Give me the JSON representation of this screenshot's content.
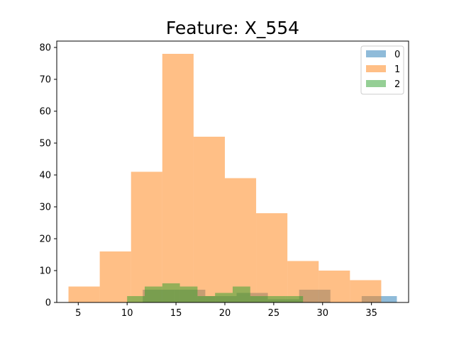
{
  "chart_data": {
    "type": "histogram",
    "title": "Feature: X_554",
    "xlabel": "",
    "ylabel": "",
    "xlim": [
      2.8,
      38.8
    ],
    "ylim": [
      0,
      82
    ],
    "x_ticks": [
      5,
      10,
      15,
      20,
      25,
      30,
      35
    ],
    "y_ticks": [
      0,
      10,
      20,
      30,
      40,
      50,
      60,
      70,
      80
    ],
    "grid": false,
    "legend_position": "top-right",
    "series": [
      {
        "name": "0",
        "color": "#1f77b4",
        "opacity": 0.5,
        "bins": [
          {
            "x0": 11.6,
            "x1": 14.8,
            "count": 4
          },
          {
            "x0": 14.8,
            "x1": 18.0,
            "count": 4
          },
          {
            "x0": 18.0,
            "x1": 21.2,
            "count": 2
          },
          {
            "x0": 21.2,
            "x1": 24.4,
            "count": 3
          },
          {
            "x0": 24.4,
            "x1": 27.6,
            "count": 1
          },
          {
            "x0": 27.6,
            "x1": 30.8,
            "count": 4
          },
          {
            "x0": 30.8,
            "x1": 34.0,
            "count": 0
          },
          {
            "x0": 34.0,
            "x1": 37.6,
            "count": 2
          }
        ]
      },
      {
        "name": "1",
        "color": "#ff7f0e",
        "opacity": 0.5,
        "bins": [
          {
            "x0": 4.0,
            "x1": 7.2,
            "count": 5
          },
          {
            "x0": 7.2,
            "x1": 10.4,
            "count": 16
          },
          {
            "x0": 10.4,
            "x1": 13.6,
            "count": 41
          },
          {
            "x0": 13.6,
            "x1": 16.8,
            "count": 78
          },
          {
            "x0": 16.8,
            "x1": 20.0,
            "count": 52
          },
          {
            "x0": 20.0,
            "x1": 23.2,
            "count": 39
          },
          {
            "x0": 23.2,
            "x1": 26.4,
            "count": 28
          },
          {
            "x0": 26.4,
            "x1": 29.6,
            "count": 13
          },
          {
            "x0": 29.6,
            "x1": 32.8,
            "count": 10
          },
          {
            "x0": 32.8,
            "x1": 36.0,
            "count": 7
          }
        ]
      },
      {
        "name": "2",
        "color": "#2ca02c",
        "opacity": 0.5,
        "bins": [
          {
            "x0": 10.0,
            "x1": 11.8,
            "count": 2
          },
          {
            "x0": 11.8,
            "x1": 13.6,
            "count": 5
          },
          {
            "x0": 13.6,
            "x1": 15.4,
            "count": 6
          },
          {
            "x0": 15.4,
            "x1": 17.2,
            "count": 5
          },
          {
            "x0": 17.2,
            "x1": 19.0,
            "count": 2
          },
          {
            "x0": 19.0,
            "x1": 20.8,
            "count": 3
          },
          {
            "x0": 20.8,
            "x1": 22.6,
            "count": 5
          },
          {
            "x0": 22.6,
            "x1": 24.4,
            "count": 2
          },
          {
            "x0": 24.4,
            "x1": 26.2,
            "count": 2
          },
          {
            "x0": 26.2,
            "x1": 28.0,
            "count": 2
          }
        ]
      }
    ]
  }
}
